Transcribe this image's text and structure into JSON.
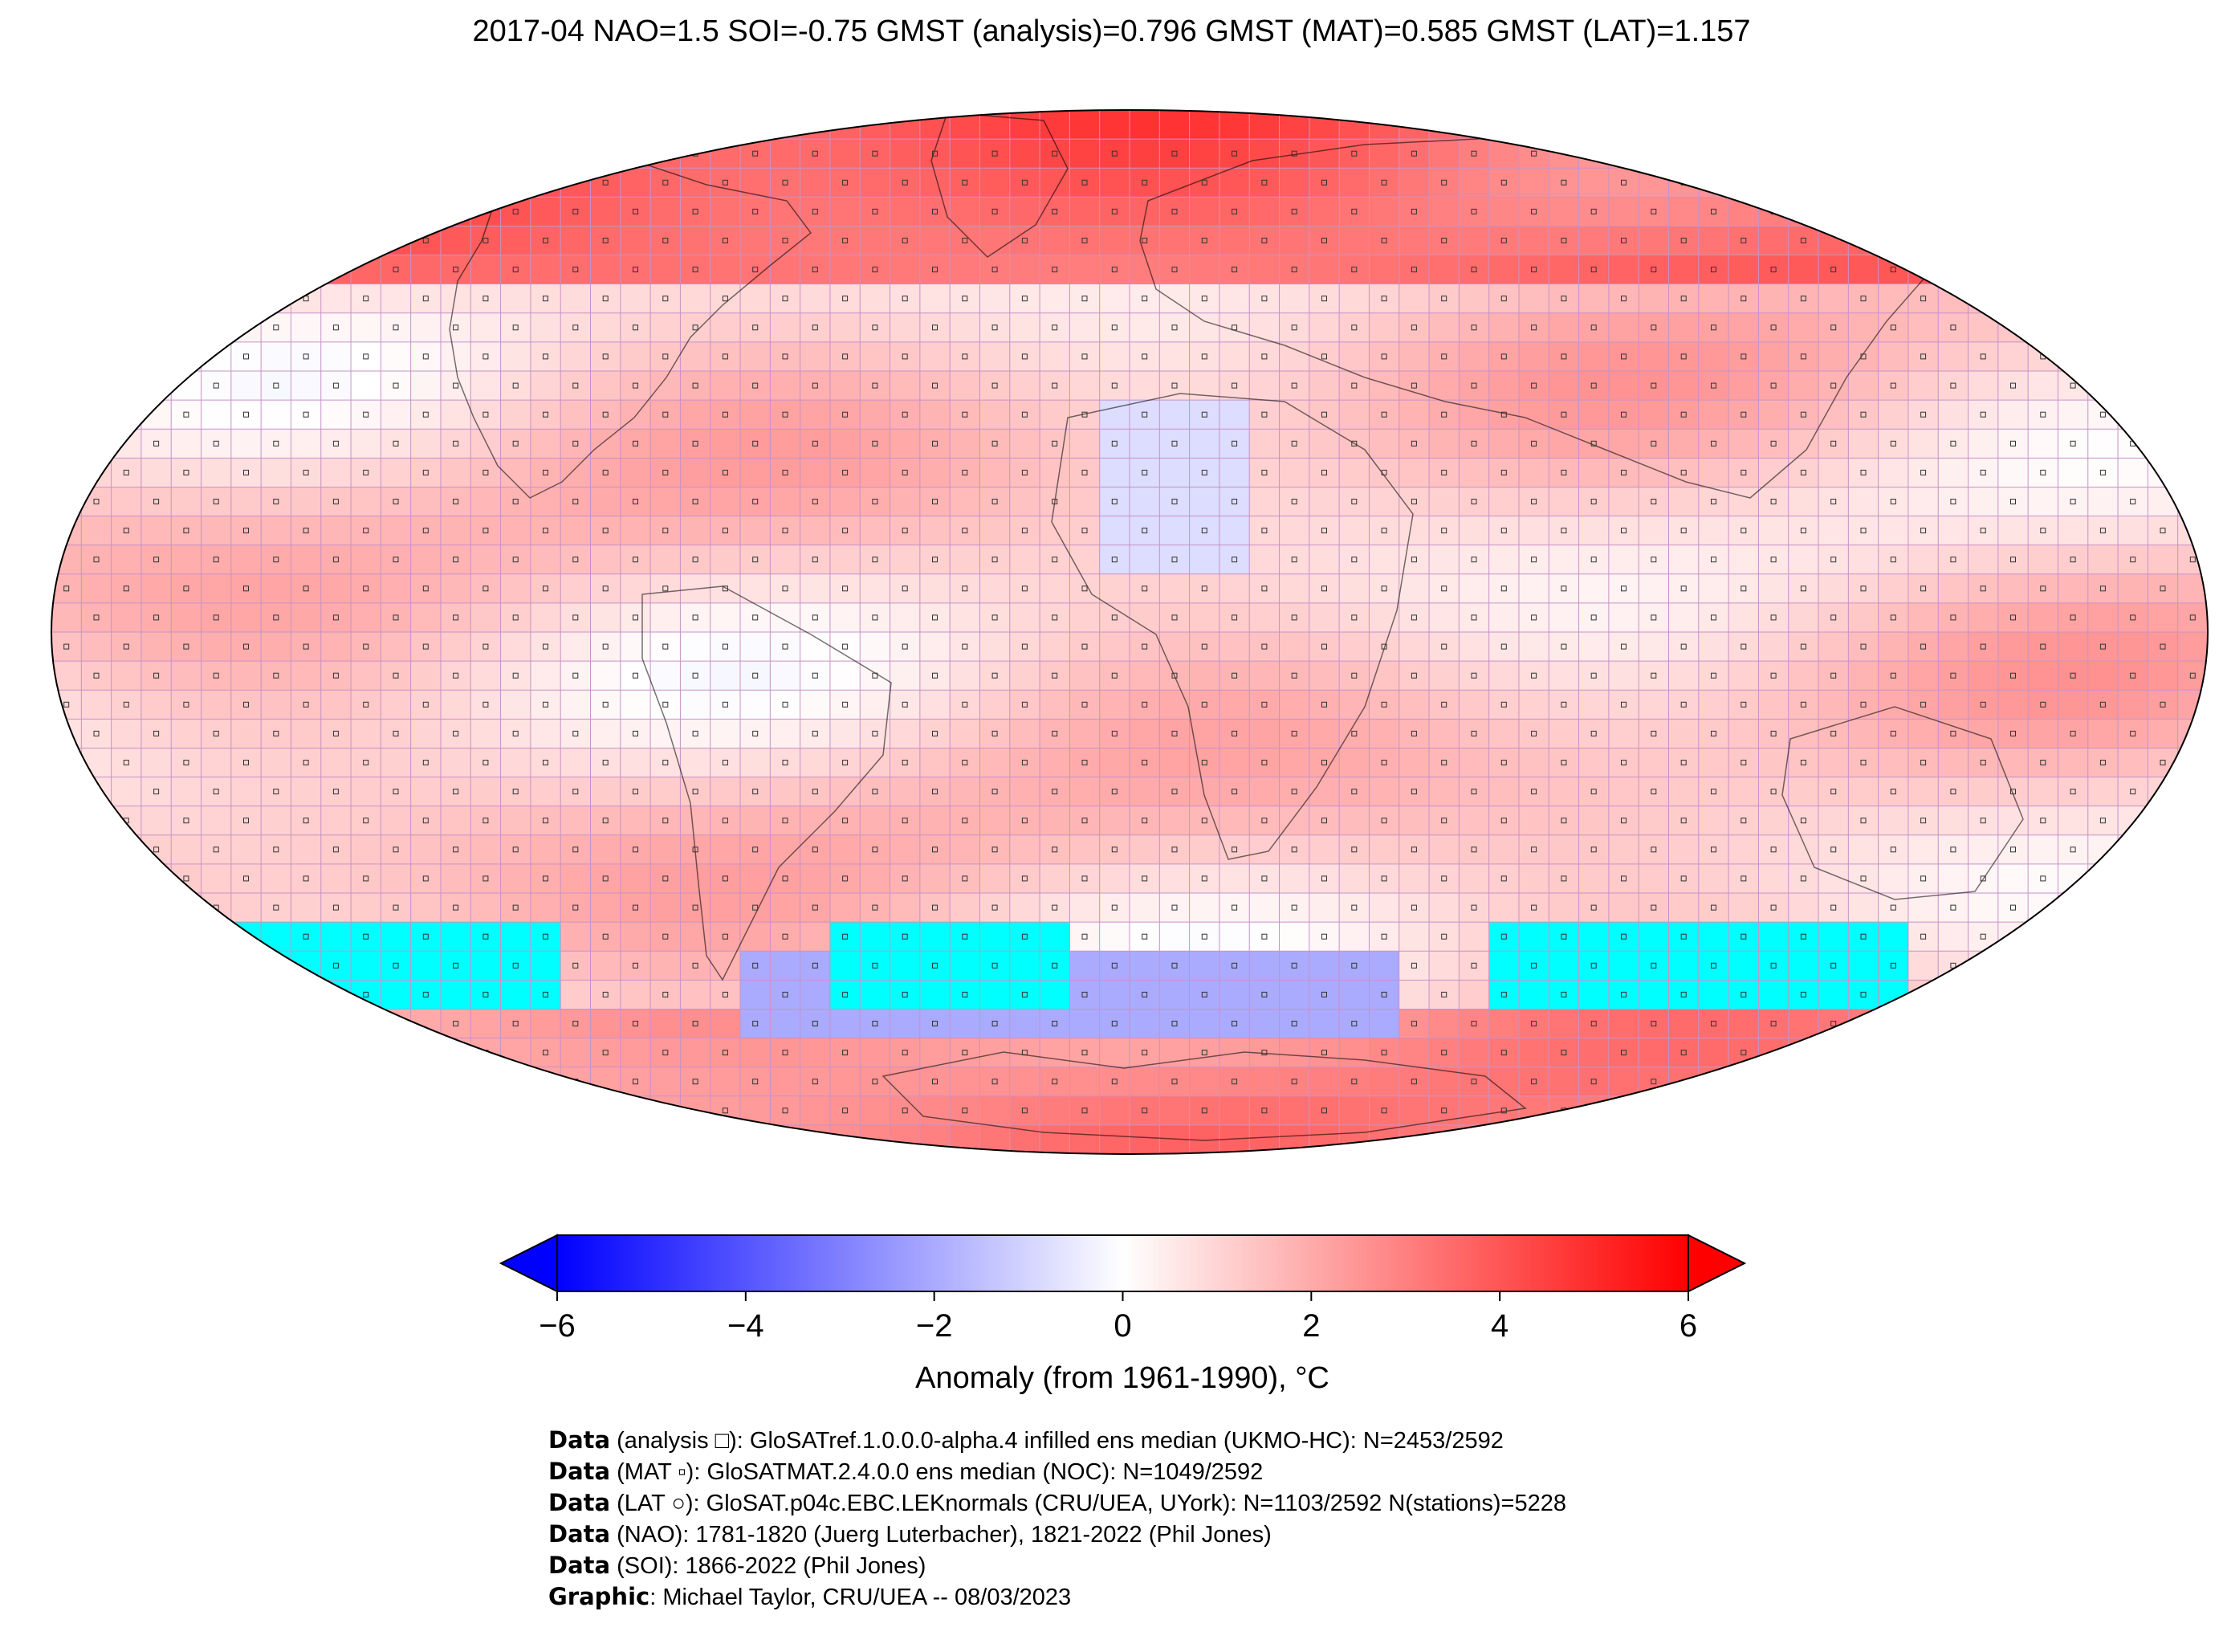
{
  "title": "2017-04 NAO=1.5 SOI=-0.75 GMST (analysis)=0.796 GMST (MAT)=0.585 GMST (LAT)=1.157",
  "map": {
    "projection": "Robinson",
    "grid": true,
    "colors": {
      "warm": "#ff0000",
      "cold": "#0000ff",
      "no_data": "#00ffff",
      "grid_line": "#c792c7",
      "coast": "#000000"
    }
  },
  "colorbar": {
    "label": "Anomaly (from 1961-1990), °C",
    "range": [
      -6,
      6
    ],
    "ticks": [
      "−6",
      "−4",
      "−2",
      "0",
      "2",
      "4",
      "6"
    ],
    "extend": "both",
    "colormap": [
      "#0000ff",
      "#ffffff",
      "#ff0000"
    ]
  },
  "credits": [
    {
      "lead": "Data",
      "text": " (analysis □): GloSATref.1.0.0.0-alpha.4 infilled ens median (UKMO-HC): N=2453/2592"
    },
    {
      "lead": "Data",
      "text": " (MAT ▫): GloSATMAT.2.4.0.0 ens median (NOC): N=1049/2592"
    },
    {
      "lead": "Data",
      "text": " (LAT ○): GloSAT.p04c.EBC.LEKnormals (CRU/UEA, UYork): N=1103/2592 N(stations)=5228"
    },
    {
      "lead": "Data",
      "text": " (NAO): 1781-1820 (Juerg Luterbacher), 1821-2022 (Phil Jones)"
    },
    {
      "lead": "Data",
      "text": " (SOI): 1866-2022 (Phil Jones)"
    },
    {
      "lead": "Graphic",
      "text": ": Michael Taylor, CRU/UEA -- 08/03/2023"
    }
  ]
}
